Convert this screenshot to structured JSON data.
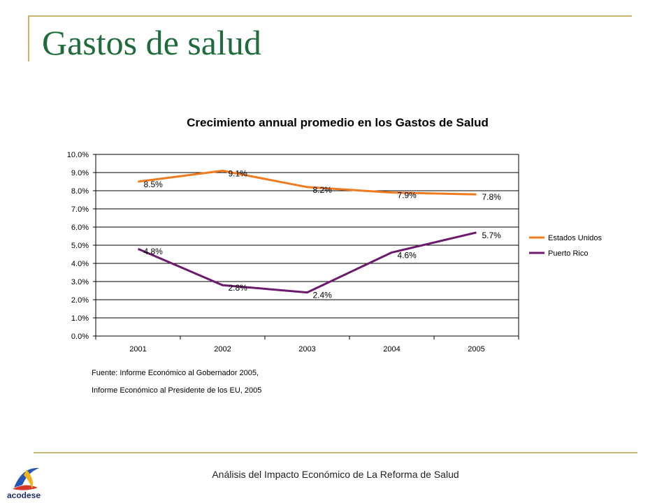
{
  "slide": {
    "title": "Gastos de salud",
    "source_line_1": "Fuente: Informe Económico al Gobernador 2005,",
    "source_line_2": "Informe Económico al Presidente de los EU, 2005",
    "footer": "Análisis del Impacto Económico de La Reforma de Salud",
    "logo_text": "acodese"
  },
  "chart_data": {
    "type": "line",
    "title": "Crecimiento annual promedio en los Gastos de Salud",
    "categories": [
      "2001",
      "2002",
      "2003",
      "2004",
      "2005"
    ],
    "y_ticks": [
      "0.0%",
      "1.0%",
      "2.0%",
      "3.0%",
      "4.0%",
      "5.0%",
      "6.0%",
      "7.0%",
      "8.0%",
      "9.0%",
      "10.0%"
    ],
    "ylim": [
      0,
      10
    ],
    "grid": true,
    "legend_position": "right",
    "series": [
      {
        "name": "Estados Unidos",
        "color": "#f07b1f",
        "values": [
          8.5,
          9.1,
          8.2,
          7.9,
          7.8
        ],
        "labels": [
          "8.5%",
          "9.1%",
          "8.2%",
          "7.9%",
          "7.8%"
        ]
      },
      {
        "name": "Puerto Rico",
        "color": "#6b1a6e",
        "values": [
          4.8,
          2.8,
          2.4,
          4.6,
          5.7
        ],
        "labels": [
          "4.8%",
          "2.8%",
          "2.4%",
          "4.6%",
          "5.7%"
        ]
      }
    ]
  }
}
